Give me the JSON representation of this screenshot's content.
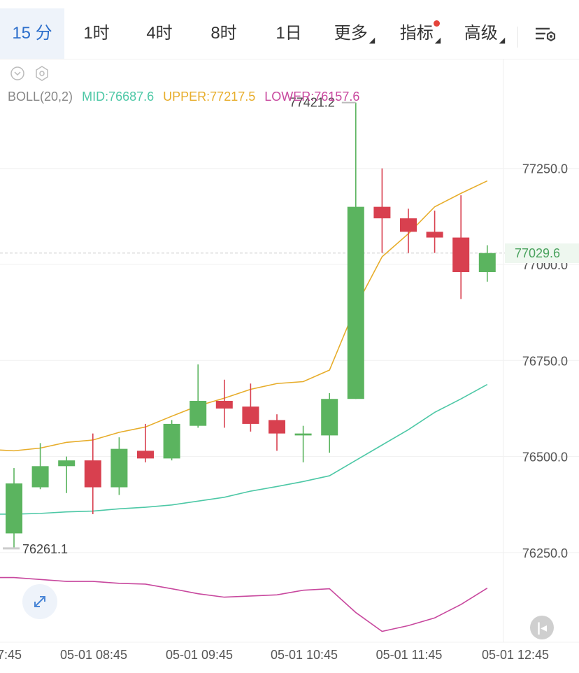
{
  "tabs": [
    {
      "label": "15 分",
      "active": true
    },
    {
      "label": "1时"
    },
    {
      "label": "4时"
    },
    {
      "label": "8时"
    },
    {
      "label": "1日"
    },
    {
      "label": "更多",
      "dropdown": true
    },
    {
      "label": "指标",
      "dropdown": true,
      "badge": true
    },
    {
      "label": "高级",
      "dropdown": true
    }
  ],
  "indicator": {
    "name": "BOLL(20,2)",
    "mid": "MID:76687.6",
    "upper": "UPPER:77217.5",
    "lower": "LOWER:76157.6"
  },
  "colors": {
    "up": "#5bb45f",
    "down": "#d8404f",
    "mid": "#4dc8a6",
    "upper": "#e7ad2b",
    "lower": "#c8489e",
    "accent": "#2d6fcb"
  },
  "current_price": "77029.6",
  "chart_data": {
    "type": "candlestick",
    "y_ticks": [
      "77250.0",
      "77000.0",
      "76750.0",
      "76500.0",
      "76250.0"
    ],
    "x_ticks": [
      "7:45",
      "05-01 08:45",
      "05-01 09:45",
      "05-01 10:45",
      "05-01 11:45",
      "05-01 12:45"
    ],
    "high_label": "77421.2",
    "low_label": "76261.1",
    "candles": [
      {
        "o": 76300,
        "h": 76470,
        "l": 76261,
        "c": 76430
      },
      {
        "o": 76420,
        "h": 76535,
        "l": 76415,
        "c": 76475
      },
      {
        "o": 76475,
        "h": 76500,
        "l": 76405,
        "c": 76490
      },
      {
        "o": 76490,
        "h": 76560,
        "l": 76350,
        "c": 76420
      },
      {
        "o": 76420,
        "h": 76550,
        "l": 76400,
        "c": 76520
      },
      {
        "o": 76515,
        "h": 76585,
        "l": 76485,
        "c": 76495
      },
      {
        "o": 76495,
        "h": 76595,
        "l": 76490,
        "c": 76585
      },
      {
        "o": 76580,
        "h": 76740,
        "l": 76575,
        "c": 76645
      },
      {
        "o": 76645,
        "h": 76700,
        "l": 76575,
        "c": 76625
      },
      {
        "o": 76630,
        "h": 76690,
        "l": 76565,
        "c": 76585
      },
      {
        "o": 76595,
        "h": 76610,
        "l": 76515,
        "c": 76560
      },
      {
        "o": 76555,
        "h": 76580,
        "l": 76485,
        "c": 76560
      },
      {
        "o": 76555,
        "h": 76665,
        "l": 76510,
        "c": 76650
      },
      {
        "o": 76650,
        "h": 77421.2,
        "l": 76650,
        "c": 77150
      },
      {
        "o": 77150,
        "h": 77250,
        "l": 77030,
        "c": 77120
      },
      {
        "o": 77120,
        "h": 77145,
        "l": 77030,
        "c": 77085
      },
      {
        "o": 77085,
        "h": 77140,
        "l": 77030,
        "c": 77070
      },
      {
        "o": 77070,
        "h": 77180,
        "l": 76910,
        "c": 76980
      },
      {
        "o": 76980,
        "h": 77050,
        "l": 76955,
        "c": 77029.6
      }
    ],
    "boll_upper": [
      76515,
      76522,
      76537,
      76543,
      76563,
      76577,
      76605,
      76632,
      76652,
      76675,
      76690,
      76695,
      76725,
      76890,
      77020,
      77080,
      77150,
      77185,
      77217.5
    ],
    "boll_mid": [
      76350,
      76352,
      76356,
      76358,
      76364,
      76368,
      76374,
      76384,
      76394,
      76410,
      76422,
      76435,
      76450,
      76490,
      76530,
      76570,
      76615,
      76650,
      76687.6
    ],
    "boll_lower": [
      76185,
      76180,
      76175,
      76175,
      76170,
      76168,
      76156,
      76143,
      76134,
      76137,
      76140,
      76152,
      76156,
      76094,
      76045,
      76060,
      76080,
      76115,
      76157.6
    ]
  }
}
